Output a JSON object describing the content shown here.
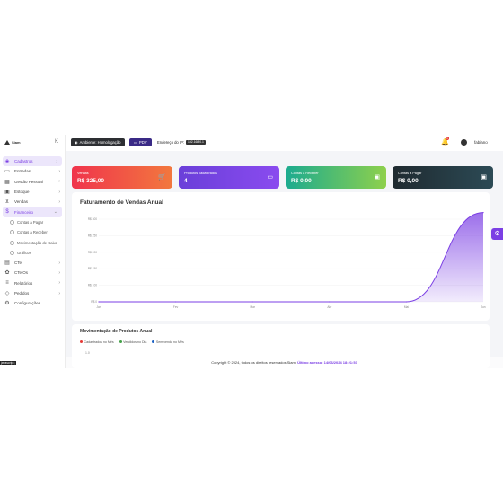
{
  "brand": "Siam",
  "sidebar": {
    "items": [
      {
        "label": "Cadastros",
        "icon": "layers-icon"
      },
      {
        "label": "Entradas",
        "icon": "inbox-icon"
      },
      {
        "label": "Gestão Pessoal",
        "icon": "users-icon"
      },
      {
        "label": "Estoque",
        "icon": "box-icon"
      },
      {
        "label": "Vendas",
        "icon": "cart-icon"
      },
      {
        "label": "Financeiro",
        "icon": "dollar-icon"
      }
    ],
    "sub_items": [
      "Contas a Pagar",
      "Contas a Receber",
      "Movimentação de Caixa",
      "Gráficos"
    ],
    "items_after": [
      {
        "label": "CTe",
        "icon": "truck-icon"
      },
      {
        "label": "CTe Os",
        "icon": "gear-icon"
      },
      {
        "label": "Relatórios",
        "icon": "report-icon"
      },
      {
        "label": "Pedidos",
        "icon": "tag-icon"
      },
      {
        "label": "Configurações",
        "icon": "settings-icon"
      }
    ]
  },
  "topbar": {
    "environment": "Ambiente: Homologação",
    "pdv": "PDV",
    "ip_label": "Endereço do IP:",
    "ip_value": "192.168.0.1",
    "notification_count": "1",
    "user_name": "fabiano"
  },
  "cards": [
    {
      "label": "Vendas",
      "value": "R$ 325,00",
      "icon": "cart-icon"
    },
    {
      "label": "Produtos cadastrados",
      "value": "4",
      "icon": "card-icon"
    },
    {
      "label": "Contas a Receber",
      "value": "R$ 0,00",
      "icon": "money-icon"
    },
    {
      "label": "Contas a Pagar",
      "value": "R$ 0,00",
      "icon": "money-icon"
    }
  ],
  "chart_data": {
    "type": "area",
    "title": "Faturamento de Vendas Anual",
    "categories": [
      "Jan",
      "Fev",
      "Mar",
      "Abr",
      "Mai",
      "Jun"
    ],
    "values": [
      0,
      0,
      0,
      0,
      0,
      325
    ],
    "ylim": [
      0,
      300
    ],
    "yticks": [
      "R$ 0",
      "R$ 100",
      "R$ 150",
      "R$ 200",
      "R$ 250",
      "R$ 300"
    ],
    "color": "#7b3fe4"
  },
  "panel2": {
    "title": "Movimentação de Produtos Anual",
    "legend": [
      {
        "label": "Cadastrados no Mês",
        "color": "#e53935"
      },
      {
        "label": "Vendidos no Dia",
        "color": "#43a047"
      },
      {
        "label": "Sem venda no Mês",
        "color": "#1e63c4"
      }
    ],
    "tick": "1.0"
  },
  "footer": {
    "text": "Copyright © 2024, todos os direitos reservados Siam.",
    "last_access": "Último acesso: 14/06/2024 18:21:53"
  },
  "corner_label": "javascript:;"
}
